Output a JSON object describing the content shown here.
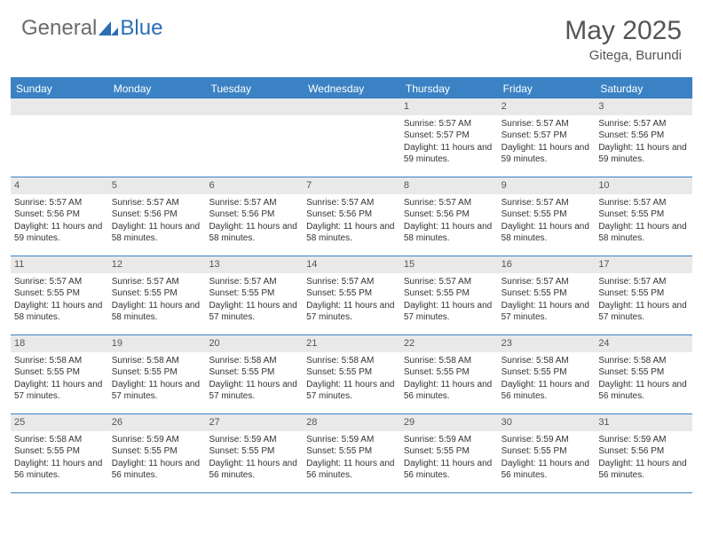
{
  "brand": {
    "text1": "General",
    "text2": "Blue",
    "text1_color": "#6b6b6b",
    "text2_color": "#2a6fb5",
    "logo_fill": "#2a6fb5"
  },
  "header": {
    "month_title": "May 2025",
    "location": "Gitega, Burundi",
    "title_color": "#555555",
    "title_fontsize": 30,
    "location_fontsize": 15
  },
  "calendar": {
    "accent_color": "#3b82c4",
    "header_bg": "#3b82c4",
    "header_text_color": "#ffffff",
    "daynum_bg": "#e9e9e9",
    "cell_text_color": "#333333",
    "day_fontsize": 10,
    "daynum_fontsize": 11,
    "days_of_week": [
      "Sunday",
      "Monday",
      "Tuesday",
      "Wednesday",
      "Thursday",
      "Friday",
      "Saturday"
    ],
    "weeks": [
      [
        {
          "empty": true
        },
        {
          "empty": true
        },
        {
          "empty": true
        },
        {
          "empty": true
        },
        {
          "num": "1",
          "sunrise": "Sunrise: 5:57 AM",
          "sunset": "Sunset: 5:57 PM",
          "daylight": "Daylight: 11 hours and 59 minutes."
        },
        {
          "num": "2",
          "sunrise": "Sunrise: 5:57 AM",
          "sunset": "Sunset: 5:57 PM",
          "daylight": "Daylight: 11 hours and 59 minutes."
        },
        {
          "num": "3",
          "sunrise": "Sunrise: 5:57 AM",
          "sunset": "Sunset: 5:56 PM",
          "daylight": "Daylight: 11 hours and 59 minutes."
        }
      ],
      [
        {
          "num": "4",
          "sunrise": "Sunrise: 5:57 AM",
          "sunset": "Sunset: 5:56 PM",
          "daylight": "Daylight: 11 hours and 59 minutes."
        },
        {
          "num": "5",
          "sunrise": "Sunrise: 5:57 AM",
          "sunset": "Sunset: 5:56 PM",
          "daylight": "Daylight: 11 hours and 58 minutes."
        },
        {
          "num": "6",
          "sunrise": "Sunrise: 5:57 AM",
          "sunset": "Sunset: 5:56 PM",
          "daylight": "Daylight: 11 hours and 58 minutes."
        },
        {
          "num": "7",
          "sunrise": "Sunrise: 5:57 AM",
          "sunset": "Sunset: 5:56 PM",
          "daylight": "Daylight: 11 hours and 58 minutes."
        },
        {
          "num": "8",
          "sunrise": "Sunrise: 5:57 AM",
          "sunset": "Sunset: 5:56 PM",
          "daylight": "Daylight: 11 hours and 58 minutes."
        },
        {
          "num": "9",
          "sunrise": "Sunrise: 5:57 AM",
          "sunset": "Sunset: 5:55 PM",
          "daylight": "Daylight: 11 hours and 58 minutes."
        },
        {
          "num": "10",
          "sunrise": "Sunrise: 5:57 AM",
          "sunset": "Sunset: 5:55 PM",
          "daylight": "Daylight: 11 hours and 58 minutes."
        }
      ],
      [
        {
          "num": "11",
          "sunrise": "Sunrise: 5:57 AM",
          "sunset": "Sunset: 5:55 PM",
          "daylight": "Daylight: 11 hours and 58 minutes."
        },
        {
          "num": "12",
          "sunrise": "Sunrise: 5:57 AM",
          "sunset": "Sunset: 5:55 PM",
          "daylight": "Daylight: 11 hours and 58 minutes."
        },
        {
          "num": "13",
          "sunrise": "Sunrise: 5:57 AM",
          "sunset": "Sunset: 5:55 PM",
          "daylight": "Daylight: 11 hours and 57 minutes."
        },
        {
          "num": "14",
          "sunrise": "Sunrise: 5:57 AM",
          "sunset": "Sunset: 5:55 PM",
          "daylight": "Daylight: 11 hours and 57 minutes."
        },
        {
          "num": "15",
          "sunrise": "Sunrise: 5:57 AM",
          "sunset": "Sunset: 5:55 PM",
          "daylight": "Daylight: 11 hours and 57 minutes."
        },
        {
          "num": "16",
          "sunrise": "Sunrise: 5:57 AM",
          "sunset": "Sunset: 5:55 PM",
          "daylight": "Daylight: 11 hours and 57 minutes."
        },
        {
          "num": "17",
          "sunrise": "Sunrise: 5:57 AM",
          "sunset": "Sunset: 5:55 PM",
          "daylight": "Daylight: 11 hours and 57 minutes."
        }
      ],
      [
        {
          "num": "18",
          "sunrise": "Sunrise: 5:58 AM",
          "sunset": "Sunset: 5:55 PM",
          "daylight": "Daylight: 11 hours and 57 minutes."
        },
        {
          "num": "19",
          "sunrise": "Sunrise: 5:58 AM",
          "sunset": "Sunset: 5:55 PM",
          "daylight": "Daylight: 11 hours and 57 minutes."
        },
        {
          "num": "20",
          "sunrise": "Sunrise: 5:58 AM",
          "sunset": "Sunset: 5:55 PM",
          "daylight": "Daylight: 11 hours and 57 minutes."
        },
        {
          "num": "21",
          "sunrise": "Sunrise: 5:58 AM",
          "sunset": "Sunset: 5:55 PM",
          "daylight": "Daylight: 11 hours and 57 minutes."
        },
        {
          "num": "22",
          "sunrise": "Sunrise: 5:58 AM",
          "sunset": "Sunset: 5:55 PM",
          "daylight": "Daylight: 11 hours and 56 minutes."
        },
        {
          "num": "23",
          "sunrise": "Sunrise: 5:58 AM",
          "sunset": "Sunset: 5:55 PM",
          "daylight": "Daylight: 11 hours and 56 minutes."
        },
        {
          "num": "24",
          "sunrise": "Sunrise: 5:58 AM",
          "sunset": "Sunset: 5:55 PM",
          "daylight": "Daylight: 11 hours and 56 minutes."
        }
      ],
      [
        {
          "num": "25",
          "sunrise": "Sunrise: 5:58 AM",
          "sunset": "Sunset: 5:55 PM",
          "daylight": "Daylight: 11 hours and 56 minutes."
        },
        {
          "num": "26",
          "sunrise": "Sunrise: 5:59 AM",
          "sunset": "Sunset: 5:55 PM",
          "daylight": "Daylight: 11 hours and 56 minutes."
        },
        {
          "num": "27",
          "sunrise": "Sunrise: 5:59 AM",
          "sunset": "Sunset: 5:55 PM",
          "daylight": "Daylight: 11 hours and 56 minutes."
        },
        {
          "num": "28",
          "sunrise": "Sunrise: 5:59 AM",
          "sunset": "Sunset: 5:55 PM",
          "daylight": "Daylight: 11 hours and 56 minutes."
        },
        {
          "num": "29",
          "sunrise": "Sunrise: 5:59 AM",
          "sunset": "Sunset: 5:55 PM",
          "daylight": "Daylight: 11 hours and 56 minutes."
        },
        {
          "num": "30",
          "sunrise": "Sunrise: 5:59 AM",
          "sunset": "Sunset: 5:55 PM",
          "daylight": "Daylight: 11 hours and 56 minutes."
        },
        {
          "num": "31",
          "sunrise": "Sunrise: 5:59 AM",
          "sunset": "Sunset: 5:56 PM",
          "daylight": "Daylight: 11 hours and 56 minutes."
        }
      ]
    ]
  }
}
